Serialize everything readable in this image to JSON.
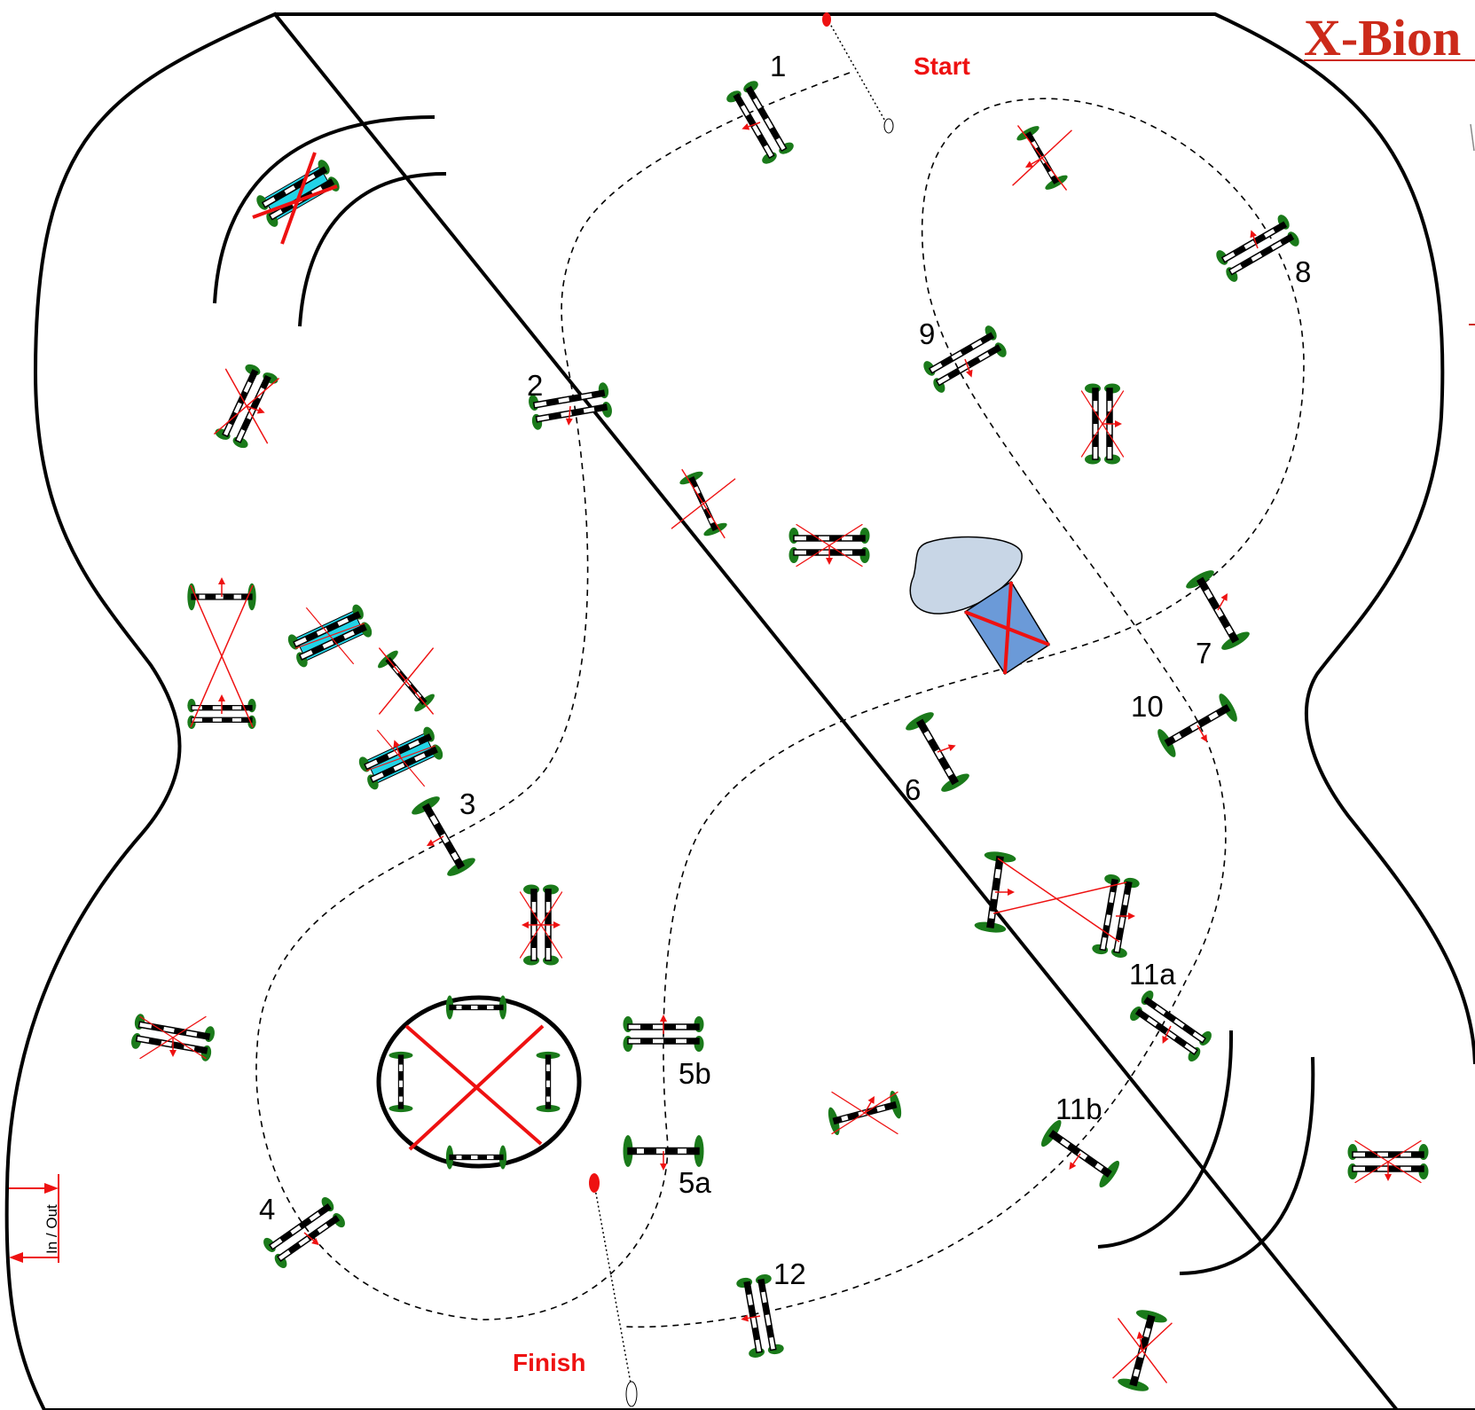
{
  "title": "X-Bion",
  "start_label": "Start",
  "finish_label": "Finish",
  "in_out_label": "In / Out",
  "colors": {
    "arena_line": "#000000",
    "course_path": "#000000",
    "label_red": "#ee1111",
    "title_red": "#cc2a1a",
    "standard_green": "#1a7a1a",
    "rail_black": "#000000",
    "water_tray": "#22d3e6",
    "liverpool": "#6b9ad8",
    "pond": "#c8d6e6",
    "cross_red": "#ee1111"
  },
  "course": {
    "fences": [
      {
        "number": "1"
      },
      {
        "number": "2"
      },
      {
        "number": "3"
      },
      {
        "number": "4"
      },
      {
        "number": "5a"
      },
      {
        "number": "5b"
      },
      {
        "number": "6"
      },
      {
        "number": "7"
      },
      {
        "number": "8"
      },
      {
        "number": "9"
      },
      {
        "number": "10"
      },
      {
        "number": "11a"
      },
      {
        "number": "11b"
      },
      {
        "number": "12"
      }
    ]
  }
}
